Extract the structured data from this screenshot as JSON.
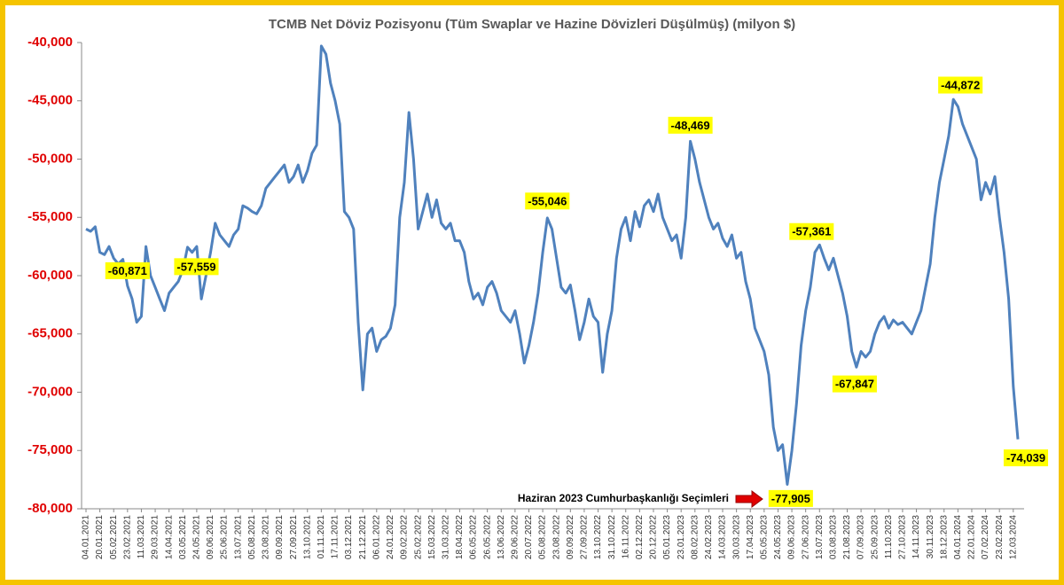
{
  "chart_data": {
    "type": "line",
    "title": "TCMB Net Döviz Pozisyonu (Tüm Swaplar ve Hazine Dövizleri Düşülmüş) (milyon $)",
    "annotation": "Haziran 2023 Cumhurbaşkanlığı Seçimleri",
    "ylim": [
      -80000,
      -40000
    ],
    "yticks": [
      {
        "value": -40000,
        "label": "-40,000"
      },
      {
        "value": -45000,
        "label": "-45,000"
      },
      {
        "value": -50000,
        "label": "-50,000"
      },
      {
        "value": -55000,
        "label": "-55,000"
      },
      {
        "value": -60000,
        "label": "-60,000"
      },
      {
        "value": -65000,
        "label": "-65,000"
      },
      {
        "value": -70000,
        "label": "-70,000"
      },
      {
        "value": -75000,
        "label": "-75,000"
      },
      {
        "value": -80000,
        "label": "-80,000"
      }
    ],
    "grid": false,
    "categories": [
      "04.01.2021",
      null,
      null,
      "20.01.2021",
      null,
      null,
      "05.02.2021",
      null,
      null,
      "23.02.2021",
      null,
      null,
      "11.03.2021",
      null,
      null,
      "29.03.2021",
      null,
      null,
      "14.04.2021",
      null,
      null,
      "03.05.2021",
      null,
      null,
      "24.05.2021",
      null,
      null,
      "09.06.2021",
      null,
      null,
      "25.06.2021",
      null,
      null,
      "13.07.2021",
      null,
      null,
      "05.08.2021",
      null,
      null,
      "23.08.2021",
      null,
      null,
      "09.09.2021",
      null,
      null,
      "27.09.2021",
      null,
      null,
      "13.10.2021",
      null,
      null,
      "01.11.2021",
      null,
      null,
      "17.11.2021",
      null,
      null,
      "03.12.2021",
      null,
      null,
      "21.12.2021",
      null,
      null,
      "06.01.2022",
      null,
      null,
      "24.01.2022",
      null,
      null,
      "09.02.2022",
      null,
      null,
      "25.02.2022",
      null,
      null,
      "15.03.2022",
      null,
      null,
      "31.03.2022",
      null,
      null,
      "18.04.2022",
      null,
      null,
      "06.05.2022",
      null,
      null,
      "26.05.2022",
      null,
      null,
      "13.06.2022",
      null,
      null,
      "29.06.2022",
      null,
      null,
      "20.07.2022",
      null,
      null,
      "05.08.2022",
      null,
      null,
      "23.08.2022",
      null,
      null,
      "09.09.2022",
      null,
      null,
      "27.09.2022",
      null,
      null,
      "13.10.2022",
      null,
      null,
      "31.10.2022",
      null,
      null,
      "16.11.2022",
      null,
      null,
      "02.12.2022",
      null,
      null,
      "20.12.2022",
      null,
      null,
      "05.01.2023",
      null,
      null,
      "23.01.2023",
      null,
      null,
      "08.02.2023",
      null,
      null,
      "24.02.2023",
      null,
      null,
      "14.03.2023",
      null,
      null,
      "30.03.2023",
      null,
      null,
      "17.04.2023",
      null,
      null,
      "05.05.2023",
      null,
      null,
      "24.05.2023",
      null,
      null,
      "09.06.2023",
      null,
      null,
      "27.06.2023",
      null,
      null,
      "13.07.2023",
      null,
      null,
      "03.08.2023",
      null,
      null,
      "21.08.2023",
      null,
      null,
      "07.09.2023",
      null,
      null,
      "25.09.2023",
      null,
      null,
      "11.10.2023",
      null,
      null,
      "27.10.2023",
      null,
      null,
      "14.11.2023",
      null,
      null,
      "30.11.2023",
      null,
      null,
      "18.12.2023",
      null,
      null,
      "04.01.2024",
      null,
      null,
      "22.01.2024",
      null,
      null,
      "07.02.2024",
      null,
      null,
      "23.02.2024",
      null,
      null,
      "12.03.2024",
      null
    ],
    "series": [
      {
        "color": "#4f81bd",
        "values": [
          -56000,
          -56200,
          -55800,
          -58000,
          -58200,
          -57500,
          -58500,
          -59000,
          -58600,
          -60871,
          -62000,
          -64000,
          -63500,
          -57500,
          -60000,
          -61000,
          -62000,
          -63000,
          -61500,
          -61000,
          -60500,
          -59500,
          -57559,
          -58000,
          -57500,
          -62000,
          -60000,
          -58000,
          -55500,
          -56500,
          -57000,
          -57500,
          -56500,
          -56000,
          -54000,
          -54200,
          -54500,
          -54700,
          -54000,
          -52500,
          -52000,
          -51500,
          -51000,
          -50500,
          -52000,
          -51500,
          -50500,
          -52000,
          -51000,
          -49500,
          -48800,
          -40300,
          -41000,
          -43500,
          -45000,
          -47000,
          -54500,
          -55000,
          -56000,
          -64000,
          -69800,
          -65000,
          -64500,
          -66500,
          -65500,
          -65200,
          -64500,
          -62500,
          -55000,
          -52000,
          -46000,
          -50000,
          -56000,
          -54500,
          -53000,
          -55000,
          -53500,
          -55500,
          -56000,
          -55500,
          -57000,
          -57000,
          -58000,
          -60500,
          -62000,
          -61500,
          -62500,
          -61000,
          -60500,
          -61500,
          -63000,
          -63500,
          -64000,
          -63000,
          -65000,
          -67500,
          -66000,
          -64000,
          -61500,
          -58000,
          -55046,
          -56000,
          -58500,
          -61000,
          -61500,
          -60800,
          -63000,
          -65500,
          -64000,
          -62000,
          -63500,
          -64000,
          -68300,
          -65000,
          -63000,
          -58500,
          -56000,
          -55000,
          -57000,
          -54500,
          -55800,
          -54000,
          -53500,
          -54500,
          -53000,
          -55000,
          -56000,
          -57000,
          -56500,
          -58500,
          -55000,
          -48469,
          -50000,
          -52000,
          -53500,
          -55000,
          -56000,
          -55500,
          -56800,
          -57500,
          -56500,
          -58500,
          -58000,
          -60500,
          -62000,
          -64500,
          -65500,
          -66500,
          -68500,
          -73000,
          -75000,
          -74500,
          -77905,
          -75000,
          -71000,
          -66000,
          -63000,
          -61000,
          -58000,
          -57361,
          -58500,
          -59500,
          -58500,
          -60000,
          -61500,
          -63500,
          -66500,
          -67847,
          -66500,
          -67000,
          -66500,
          -65000,
          -64000,
          -63500,
          -64500,
          -63800,
          -64200,
          -64000,
          -64500,
          -65000,
          -64000,
          -63000,
          -61000,
          -59000,
          -55000,
          -52000,
          -50000,
          -48000,
          -44872,
          -45500,
          -47000,
          -48000,
          -49000,
          -50000,
          -53500,
          -52000,
          -53000,
          -51500,
          -55000,
          -58000,
          -62000,
          -69500,
          -74039
        ],
        "value_labels": [
          null,
          null,
          null,
          null,
          null,
          null,
          null,
          null,
          null,
          "-60,871",
          null,
          null,
          null,
          null,
          null,
          null,
          null,
          null,
          null,
          null,
          null,
          null,
          "-57,559",
          null,
          null,
          null,
          null,
          null,
          null,
          null,
          null,
          null,
          null,
          null,
          null,
          null,
          null,
          null,
          null,
          null,
          null,
          null,
          null,
          null,
          null,
          null,
          null,
          null,
          null,
          null,
          null,
          null,
          null,
          null,
          null,
          null,
          null,
          null,
          null,
          null,
          null,
          null,
          null,
          null,
          null,
          null,
          null,
          null,
          null,
          null,
          null,
          null,
          null,
          null,
          null,
          null,
          null,
          null,
          null,
          null,
          null,
          null,
          null,
          null,
          null,
          null,
          null,
          null,
          null,
          null,
          null,
          null,
          null,
          null,
          null,
          null,
          null,
          null,
          null,
          null,
          "-55,046",
          null,
          null,
          null,
          null,
          null,
          null,
          null,
          null,
          null,
          null,
          null,
          null,
          null,
          null,
          null,
          null,
          null,
          null,
          null,
          null,
          null,
          null,
          null,
          null,
          null,
          null,
          null,
          null,
          null,
          null,
          "-48,469",
          null,
          null,
          null,
          null,
          null,
          null,
          null,
          null,
          null,
          null,
          null,
          null,
          null,
          null,
          null,
          null,
          null,
          null,
          null,
          null,
          "-77,905",
          null,
          null,
          null,
          null,
          null,
          null,
          "-57,361",
          null,
          null,
          null,
          null,
          null,
          null,
          null,
          "-67,847",
          null,
          null,
          null,
          null,
          null,
          null,
          null,
          null,
          null,
          null,
          null,
          null,
          null,
          null,
          null,
          null,
          null,
          null,
          null,
          null,
          "-44,872",
          null,
          null,
          null,
          null,
          null,
          null,
          null,
          null,
          null,
          null,
          null,
          null,
          null,
          "-74,039"
        ]
      }
    ]
  }
}
